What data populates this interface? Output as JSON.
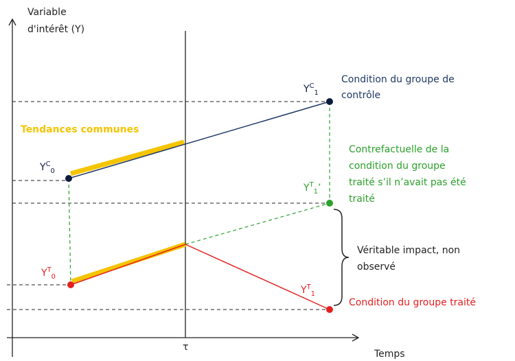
{
  "axes": {
    "y_label": [
      "Variable",
      "d'intérêt (Y)"
    ],
    "x_label": "Temps",
    "tau": "τ"
  },
  "trend_label": "Tendances communes",
  "points": {
    "yc0": {
      "base": "Y",
      "sup": "C",
      "sub": "0",
      "suffix": ""
    },
    "yc1": {
      "base": "Y",
      "sup": "C",
      "sub": "1",
      "suffix": ""
    },
    "yt0": {
      "base": "Y",
      "sup": "T",
      "sub": "0",
      "suffix": ""
    },
    "yt1": {
      "base": "Y",
      "sup": "T",
      "sub": "1",
      "suffix": ""
    },
    "yt1p": {
      "base": "Y",
      "sup": "T",
      "sub": "1",
      "suffix": "’"
    }
  },
  "annotations": {
    "control": [
      "Condition du groupe de",
      "contrôle"
    ],
    "counterfactual": [
      "Contrefactuelle de la",
      "condition du groupe",
      "traité s’il n’avait pas été",
      "traité"
    ],
    "impact": [
      "Véritable impact, non",
      "observé"
    ],
    "treated": [
      "Condition du groupe traité"
    ]
  }
}
